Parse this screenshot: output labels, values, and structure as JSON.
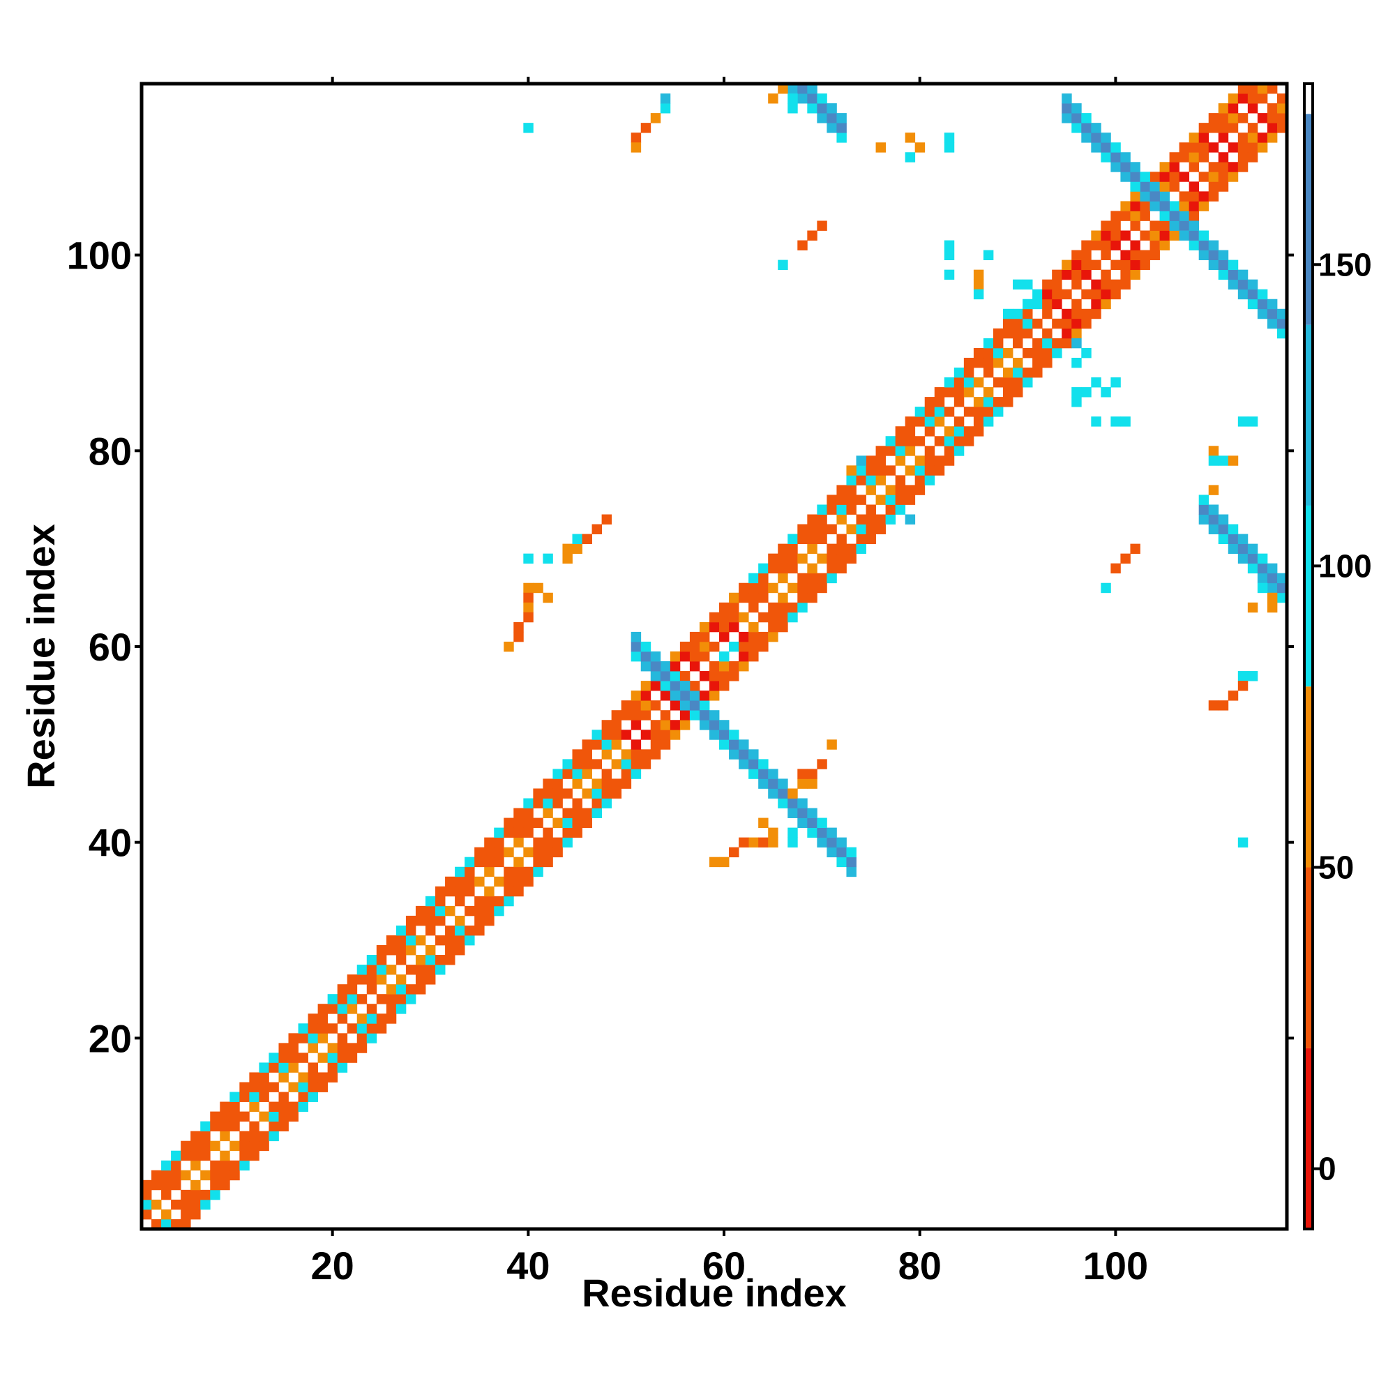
{
  "chart_data": {
    "type": "heatmap",
    "title": "",
    "xlabel": "Residue index",
    "ylabel": "Residue index",
    "xlim": [
      1,
      117
    ],
    "ylim": [
      1,
      117
    ],
    "x_ticks": [
      20,
      40,
      60,
      80,
      100
    ],
    "y_ticks": [
      20,
      40,
      60,
      80,
      100
    ],
    "x_tick_labels": [
      "20",
      "40",
      "60",
      "80",
      "100"
    ],
    "y_tick_labels": [
      "20",
      "40",
      "60",
      "80",
      "100"
    ],
    "grid": false,
    "legend": "none",
    "colorbar": {
      "position": "right",
      "range": [
        -10,
        180
      ],
      "ticks": [
        0,
        50,
        100,
        150
      ],
      "tick_labels": [
        "0",
        "50",
        "100",
        "150"
      ],
      "bands": [
        {
          "from": -10,
          "to": 20,
          "color": "#e8150a"
        },
        {
          "from": 20,
          "to": 50,
          "color": "#f0560a"
        },
        {
          "from": 50,
          "to": 80,
          "color": "#f28e08"
        },
        {
          "from": 80,
          "to": 110,
          "color": "#12e0ec"
        },
        {
          "from": 110,
          "to": 140,
          "color": "#25b8dc"
        },
        {
          "from": 140,
          "to": 175,
          "color": "#4a88c4"
        },
        {
          "from": 175,
          "to": 180,
          "color": "#ffffff"
        }
      ]
    },
    "color_scale": {
      "red": "#e8150a",
      "orange_red": "#f0560a",
      "orange": "#f28e08",
      "cyan": "#12e0ec",
      "light_blue": "#25b8dc",
      "steel_blue": "#4a88c4"
    },
    "segments": [
      {
        "kind": "diagonal_band",
        "from": 1,
        "to": 50,
        "offsets": [
          1,
          2,
          3,
          4
        ],
        "value_scheme": "helix_mix"
      },
      {
        "kind": "diagonal_band",
        "from": 50,
        "to": 62,
        "offsets": [
          1,
          2,
          3,
          4
        ],
        "value_scheme": "helix_red"
      },
      {
        "kind": "diagonal_band",
        "from": 62,
        "to": 92,
        "offsets": [
          1,
          2,
          3,
          4
        ],
        "value_scheme": "helix_mix"
      },
      {
        "kind": "diagonal_band",
        "from": 92,
        "to": 117,
        "offsets": [
          1,
          2,
          3,
          4
        ],
        "value_scheme": "helix_red"
      },
      {
        "kind": "antiparallel_sheet",
        "sum": 111,
        "x_from": 51,
        "x_to": 60,
        "width": 3,
        "value": 140
      },
      {
        "kind": "antiparallel_sheet",
        "sum": 111,
        "x_from": 61,
        "x_to": 73,
        "width": 3,
        "value": 140
      },
      {
        "kind": "antiparallel_sheet",
        "sum": 210,
        "x_from": 95,
        "x_to": 105,
        "width": 3,
        "value": 140
      },
      {
        "kind": "antiparallel_sheet",
        "sum": 210,
        "x_from": 105,
        "x_to": 117,
        "width": 3,
        "value": 140
      },
      {
        "kind": "antiparallel_sheet",
        "sum": 183,
        "x_from": 109,
        "x_to": 117,
        "width": 3,
        "value": 140
      },
      {
        "kind": "antiparallel_sheet",
        "sum": 185,
        "x_from": 65,
        "x_to": 72,
        "width": 3,
        "value": 140
      }
    ],
    "scattered_cells": [
      [
        40,
        113,
        100
      ],
      [
        54,
        115,
        100
      ],
      [
        54,
        116,
        130
      ],
      [
        53,
        114,
        60
      ],
      [
        52,
        113,
        40
      ],
      [
        51,
        112,
        40
      ],
      [
        51,
        111,
        50
      ],
      [
        65,
        116,
        60
      ],
      [
        66,
        117,
        60
      ],
      [
        67,
        116,
        100
      ],
      [
        67,
        115,
        100
      ],
      [
        76,
        111,
        60
      ],
      [
        79,
        110,
        100
      ],
      [
        79,
        112,
        60
      ],
      [
        80,
        111,
        50
      ],
      [
        83,
        112,
        100
      ],
      [
        83,
        111,
        100
      ],
      [
        68,
        101,
        40
      ],
      [
        69,
        102,
        40
      ],
      [
        70,
        103,
        20
      ],
      [
        66,
        99,
        100
      ],
      [
        83,
        101,
        100
      ],
      [
        83,
        100,
        100
      ],
      [
        87,
        100,
        100
      ],
      [
        83,
        98,
        100
      ],
      [
        86,
        98,
        60
      ],
      [
        86,
        97,
        50
      ],
      [
        86,
        96,
        100
      ],
      [
        90,
        97,
        100
      ],
      [
        91,
        97,
        100
      ],
      [
        92,
        96,
        100
      ],
      [
        92,
        95,
        100
      ],
      [
        91,
        95,
        100
      ],
      [
        89,
        94,
        100
      ],
      [
        96,
        91,
        130
      ],
      [
        97,
        90,
        100
      ],
      [
        96,
        89,
        100
      ],
      [
        96,
        86,
        100
      ],
      [
        97,
        86,
        100
      ],
      [
        99,
        86,
        100
      ],
      [
        96,
        85,
        100
      ],
      [
        98,
        87,
        100
      ],
      [
        100,
        87,
        100
      ],
      [
        98,
        83,
        100
      ],
      [
        100,
        83,
        100
      ],
      [
        101,
        83,
        100
      ],
      [
        113,
        83,
        100
      ],
      [
        114,
        83,
        100
      ],
      [
        110,
        80,
        60
      ],
      [
        110,
        79,
        100
      ],
      [
        111,
        79,
        100
      ],
      [
        112,
        79,
        60
      ],
      [
        110,
        76,
        60
      ],
      [
        74,
        79,
        130
      ],
      [
        79,
        73,
        130
      ],
      [
        73,
        78,
        60
      ],
      [
        102,
        70,
        40
      ],
      [
        101,
        69,
        40
      ],
      [
        100,
        68,
        20
      ],
      [
        99,
        66,
        100
      ],
      [
        40,
        69,
        100
      ],
      [
        42,
        69,
        100
      ],
      [
        44,
        70,
        60
      ],
      [
        45,
        70,
        60
      ],
      [
        44,
        69,
        60
      ],
      [
        45,
        71,
        100
      ],
      [
        46,
        71,
        20
      ],
      [
        47,
        72,
        40
      ],
      [
        48,
        73,
        20
      ],
      [
        40,
        66,
        60
      ],
      [
        40,
        65,
        40
      ],
      [
        41,
        66,
        60
      ],
      [
        42,
        65,
        60
      ],
      [
        40,
        64,
        60
      ],
      [
        40,
        63,
        40
      ],
      [
        39,
        62,
        20
      ],
      [
        38,
        60,
        60
      ],
      [
        39,
        61,
        40
      ],
      [
        61,
        60,
        80
      ],
      [
        60,
        59,
        80
      ],
      [
        59,
        58,
        20
      ],
      [
        59,
        57,
        20
      ],
      [
        63,
        40,
        60
      ],
      [
        64,
        40,
        40
      ],
      [
        65,
        40,
        60
      ],
      [
        62,
        40,
        40
      ],
      [
        61,
        39,
        20
      ],
      [
        60,
        38,
        60
      ],
      [
        59,
        38,
        60
      ],
      [
        64,
        42,
        60
      ],
      [
        65,
        41,
        60
      ],
      [
        67,
        41,
        100
      ],
      [
        67,
        40,
        100
      ],
      [
        68,
        46,
        60
      ],
      [
        67,
        45,
        60
      ],
      [
        69,
        46,
        60
      ],
      [
        69,
        47,
        40
      ],
      [
        70,
        48,
        20
      ],
      [
        68,
        47,
        20
      ],
      [
        71,
        50,
        60
      ],
      [
        113,
        57,
        100
      ],
      [
        114,
        57,
        100
      ],
      [
        113,
        56,
        40
      ],
      [
        112,
        55,
        40
      ],
      [
        111,
        54,
        40
      ],
      [
        110,
        54,
        20
      ],
      [
        113,
        40,
        100
      ],
      [
        116,
        64,
        60
      ],
      [
        116,
        65,
        60
      ],
      [
        115,
        66,
        100
      ],
      [
        114,
        64,
        60
      ]
    ]
  }
}
